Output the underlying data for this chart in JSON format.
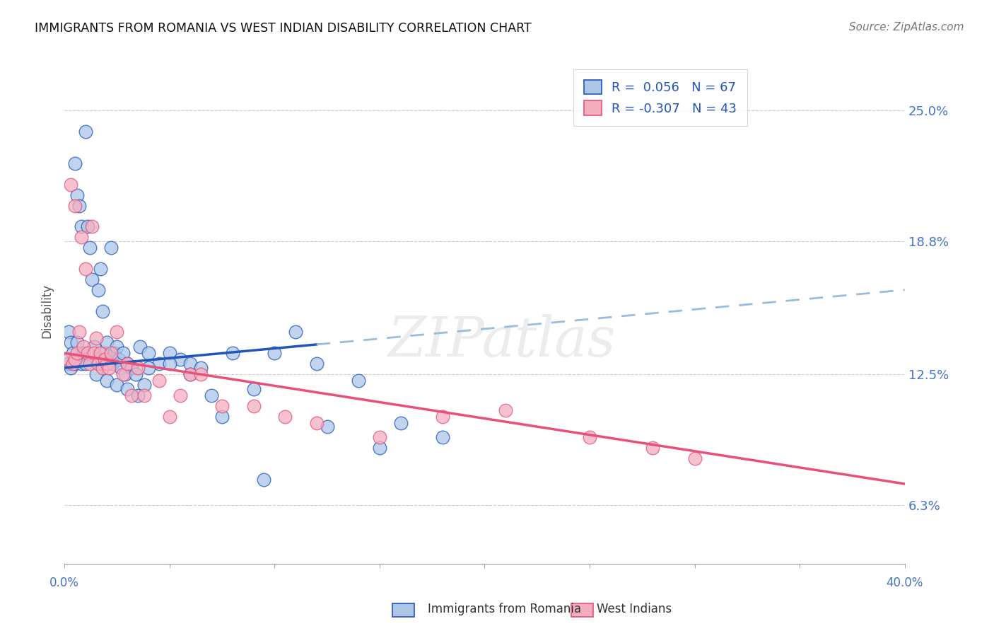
{
  "title": "IMMIGRANTS FROM ROMANIA VS WEST INDIAN DISABILITY CORRELATION CHART",
  "source": "Source: ZipAtlas.com",
  "ylabel": "Disability",
  "y_ticks": [
    6.3,
    12.5,
    18.8,
    25.0
  ],
  "y_tick_labels": [
    "6.3%",
    "12.5%",
    "18.8%",
    "25.0%"
  ],
  "x_min": 0.0,
  "x_max": 40.0,
  "y_min": 3.5,
  "y_max": 27.5,
  "legend_romania_r": "0.056",
  "legend_romania_n": "67",
  "legend_westindian_r": "-0.307",
  "legend_westindian_n": "43",
  "romania_color": "#adc6e8",
  "westindian_color": "#f5aec0",
  "romania_trend_color": "#2255bb",
  "westindian_trend_color": "#e8507a",
  "romania_dashed_color": "#99bbdd",
  "watermark": "ZIPatlas",
  "romania_trend_x0": 0.0,
  "romania_trend_y0": 12.8,
  "romania_trend_x1": 40.0,
  "romania_trend_y1": 16.5,
  "romania_solid_end_x": 12.0,
  "wi_trend_x0": 0.0,
  "wi_trend_y0": 13.5,
  "wi_trend_x1": 40.0,
  "wi_trend_y1": 7.3,
  "romania_x": [
    0.2,
    0.2,
    0.3,
    0.3,
    0.4,
    0.5,
    0.5,
    0.6,
    0.6,
    0.7,
    0.7,
    0.8,
    0.8,
    0.9,
    1.0,
    1.0,
    1.1,
    1.2,
    1.3,
    1.4,
    1.5,
    1.6,
    1.7,
    1.8,
    1.9,
    2.0,
    2.1,
    2.2,
    2.3,
    2.4,
    2.5,
    2.6,
    2.7,
    2.8,
    2.9,
    3.0,
    3.2,
    3.4,
    3.6,
    3.8,
    4.0,
    4.5,
    5.0,
    5.5,
    6.0,
    6.5,
    7.0,
    8.0,
    9.0,
    10.0,
    11.0,
    12.0,
    14.0,
    16.0,
    18.0,
    1.5,
    2.0,
    2.5,
    3.0,
    3.5,
    4.0,
    5.0,
    6.0,
    7.5,
    9.5,
    12.5,
    15.0
  ],
  "romania_y": [
    13.0,
    14.5,
    12.8,
    14.0,
    13.5,
    22.5,
    13.0,
    21.0,
    14.0,
    20.5,
    13.2,
    19.5,
    13.0,
    13.5,
    24.0,
    13.0,
    19.5,
    18.5,
    17.0,
    13.8,
    13.2,
    16.5,
    17.5,
    15.5,
    13.5,
    14.0,
    13.2,
    18.5,
    13.0,
    13.5,
    13.8,
    13.2,
    12.8,
    13.5,
    12.5,
    13.0,
    12.8,
    12.5,
    13.8,
    12.0,
    13.5,
    13.0,
    13.5,
    13.2,
    13.0,
    12.8,
    11.5,
    13.5,
    11.8,
    13.5,
    14.5,
    13.0,
    12.2,
    10.2,
    9.5,
    12.5,
    12.2,
    12.0,
    11.8,
    11.5,
    12.8,
    13.0,
    12.5,
    10.5,
    7.5,
    10.0,
    9.0
  ],
  "westindian_x": [
    0.2,
    0.3,
    0.4,
    0.5,
    0.5,
    0.6,
    0.7,
    0.8,
    0.9,
    1.0,
    1.1,
    1.2,
    1.3,
    1.4,
    1.5,
    1.6,
    1.7,
    1.8,
    1.9,
    2.0,
    2.1,
    2.2,
    2.5,
    2.8,
    3.0,
    3.2,
    3.5,
    3.8,
    4.5,
    5.0,
    5.5,
    6.0,
    6.5,
    7.5,
    9.0,
    10.5,
    12.0,
    15.0,
    18.0,
    21.0,
    25.0,
    28.0,
    30.0
  ],
  "westindian_y": [
    13.2,
    21.5,
    13.0,
    20.5,
    13.2,
    13.5,
    14.5,
    19.0,
    13.8,
    17.5,
    13.5,
    13.0,
    19.5,
    13.5,
    14.2,
    13.0,
    13.5,
    12.8,
    13.2,
    13.0,
    12.8,
    13.5,
    14.5,
    12.5,
    13.0,
    11.5,
    12.8,
    11.5,
    12.2,
    10.5,
    11.5,
    12.5,
    12.5,
    11.0,
    11.0,
    10.5,
    10.2,
    9.5,
    10.5,
    10.8,
    9.5,
    9.0,
    8.5
  ]
}
